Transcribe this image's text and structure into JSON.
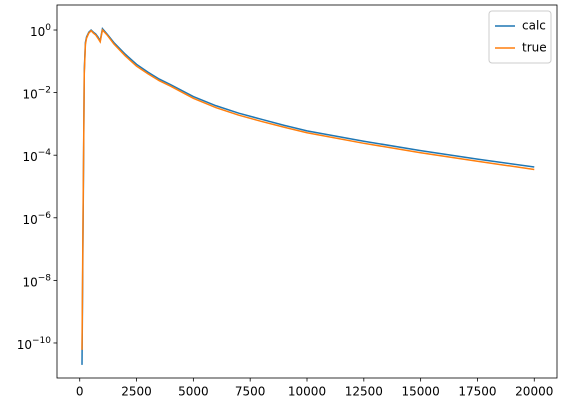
{
  "chart_data": {
    "type": "line",
    "yscale": "log",
    "x": [
      100,
      150,
      200,
      250,
      300,
      400,
      500,
      600,
      700,
      800,
      900,
      1000,
      1200,
      1500,
      2000,
      2500,
      3000,
      3500,
      4000,
      5000,
      6000,
      7000,
      8000,
      9000,
      10000,
      12500,
      15000,
      17500,
      20000
    ],
    "series": [
      {
        "name": "calc",
        "color": "#1f77b4",
        "values": [
          2e-11,
          1e-06,
          0.05,
          0.4,
          0.6,
          0.85,
          1.0,
          0.85,
          0.75,
          0.6,
          0.45,
          1.1,
          0.75,
          0.4,
          0.17,
          0.08,
          0.045,
          0.027,
          0.018,
          0.0075,
          0.0038,
          0.0022,
          0.0014,
          0.0009,
          0.0006,
          0.00028,
          0.00014,
          7.5e-05,
          4.2e-05
        ]
      },
      {
        "name": "true",
        "color": "#ff7f0e",
        "values": [
          6e-11,
          3e-06,
          0.04,
          0.35,
          0.55,
          0.8,
          0.95,
          0.8,
          0.7,
          0.55,
          0.42,
          1.0,
          0.7,
          0.36,
          0.15,
          0.07,
          0.04,
          0.024,
          0.016,
          0.0066,
          0.0033,
          0.0019,
          0.0012,
          0.00078,
          0.00052,
          0.00024,
          0.00012,
          6.4e-05,
          3.5e-05
        ]
      }
    ],
    "xlim": [
      -1000,
      21000
    ],
    "xticks": [
      0,
      2500,
      5000,
      7500,
      10000,
      12500,
      15000,
      17500,
      20000
    ],
    "ylim": [
      7.6e-12,
      6.3
    ],
    "yticks": [
      {
        "value": 1e-10,
        "label": "10^−10"
      },
      {
        "value": 1e-08,
        "label": "10^−8"
      },
      {
        "value": 1e-06,
        "label": "10^−6"
      },
      {
        "value": 0.0001,
        "label": "10^−4"
      },
      {
        "value": 0.01,
        "label": "10^−2"
      },
      {
        "value": 1,
        "label": "10^0"
      }
    ],
    "legend": "upper right"
  }
}
